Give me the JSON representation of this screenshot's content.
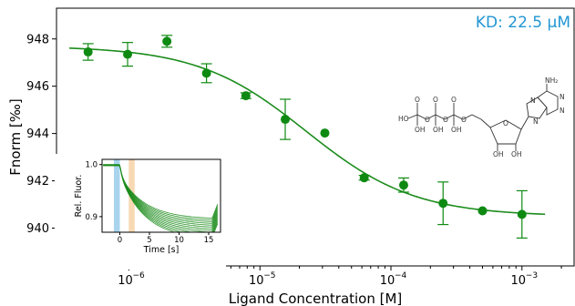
{
  "chart_data": [
    {
      "type": "scatter",
      "title": "",
      "annotation": "KD: 22.5 μM",
      "xlabel": "Ligand Concentration [M]",
      "ylabel": "Fnorm [‰]",
      "xscale": "log",
      "xlim": [
        2.8e-07,
        0.0025
      ],
      "ylim": [
        938.4,
        949.3
      ],
      "grid": false,
      "xticks": [
        1e-06,
        1e-05,
        0.0001,
        0.001
      ],
      "xtick_labels": [
        "10",
        "10",
        "10",
        "10"
      ],
      "xtick_exponents": [
        "−6",
        "−5",
        "−4",
        "−3"
      ],
      "yticks": [
        940,
        942,
        944,
        946,
        948
      ],
      "ytick_labels": [
        "940",
        "942",
        "944",
        "946",
        "948"
      ],
      "series": [
        {
          "kind": "points",
          "x": [
            4.88e-07,
            9.77e-07,
            1.95e-06,
            3.91e-06,
            7.81e-06,
            1.56e-05,
            3.13e-05,
            6.25e-05,
            0.000125,
            0.00025,
            0.0005,
            0.001
          ],
          "y": [
            947.45,
            947.35,
            947.9,
            946.55,
            945.6,
            944.6,
            944.02,
            942.13,
            941.82,
            941.05,
            940.73,
            940.58
          ],
          "err": [
            0.35,
            0.5,
            0.25,
            0.4,
            0.12,
            0.85,
            0.0,
            0.1,
            0.3,
            0.9,
            0.0,
            1.0
          ],
          "color": "#0e8a12"
        },
        {
          "kind": "fit",
          "model": "hill",
          "top": 947.7,
          "bottom": 940.5,
          "kd": 2.25e-05,
          "hill": 1.05,
          "color": "#1c8c1c"
        }
      ],
      "annotation_color": "#2196d3"
    },
    {
      "type": "line",
      "title": "",
      "xlabel": "Time [s]",
      "ylabel": "Rel. Fluor.",
      "xlim": [
        -3,
        17
      ],
      "ylim": [
        0.87,
        1.01
      ],
      "xticks": [
        0,
        5,
        10,
        15
      ],
      "xtick_labels": [
        "0",
        "5",
        "10",
        "15"
      ],
      "yticks": [
        0.9,
        1.0
      ],
      "ytick_labels": [
        "0.9",
        "1.0"
      ],
      "cold_region": [
        -1,
        0
      ],
      "hot_region": [
        1.5,
        2.5
      ],
      "cold_color": "#a8d4ee",
      "hot_color": "#f7d9b4",
      "trace_color": "#1c8c1c",
      "trace_count": 12
    }
  ]
}
